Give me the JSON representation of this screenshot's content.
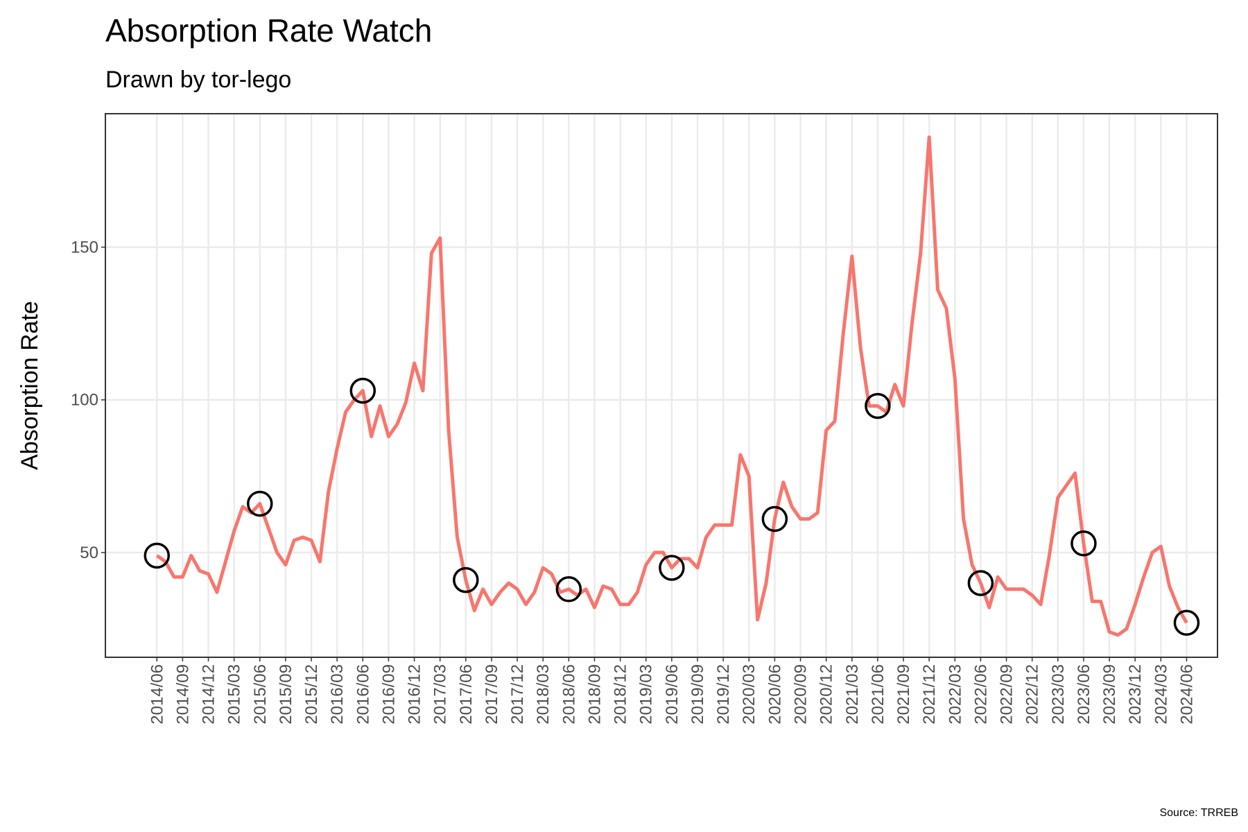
{
  "chart_data": {
    "type": "line",
    "title": "Absorption Rate Watch",
    "subtitle": "Drawn by tor-lego",
    "y_label": "Absorption Rate",
    "caption": "Source: TRREB",
    "x": [
      "2014/06",
      "2014/07",
      "2014/08",
      "2014/09",
      "2014/10",
      "2014/11",
      "2014/12",
      "2015/01",
      "2015/02",
      "2015/03",
      "2015/04",
      "2015/05",
      "2015/06",
      "2015/07",
      "2015/08",
      "2015/09",
      "2015/10",
      "2015/11",
      "2015/12",
      "2016/01",
      "2016/02",
      "2016/03",
      "2016/04",
      "2016/05",
      "2016/06",
      "2016/07",
      "2016/08",
      "2016/09",
      "2016/10",
      "2016/11",
      "2016/12",
      "2017/01",
      "2017/02",
      "2017/03",
      "2017/04",
      "2017/05",
      "2017/06",
      "2017/07",
      "2017/08",
      "2017/09",
      "2017/10",
      "2017/11",
      "2017/12",
      "2018/01",
      "2018/02",
      "2018/03",
      "2018/04",
      "2018/05",
      "2018/06",
      "2018/07",
      "2018/08",
      "2018/09",
      "2018/10",
      "2018/11",
      "2018/12",
      "2019/01",
      "2019/02",
      "2019/03",
      "2019/04",
      "2019/05",
      "2019/06",
      "2019/07",
      "2019/08",
      "2019/09",
      "2019/10",
      "2019/11",
      "2019/12",
      "2020/01",
      "2020/02",
      "2020/03",
      "2020/04",
      "2020/05",
      "2020/06",
      "2020/07",
      "2020/08",
      "2020/09",
      "2020/10",
      "2020/11",
      "2020/12",
      "2021/01",
      "2021/02",
      "2021/03",
      "2021/04",
      "2021/05",
      "2021/06",
      "2021/07",
      "2021/08",
      "2021/09",
      "2021/10",
      "2021/11",
      "2021/12",
      "2022/01",
      "2022/02",
      "2022/03",
      "2022/04",
      "2022/05",
      "2022/06",
      "2022/07",
      "2022/08",
      "2022/09",
      "2022/10",
      "2022/11",
      "2022/12",
      "2023/01",
      "2023/02",
      "2023/03",
      "2023/04",
      "2023/05",
      "2023/06",
      "2023/07",
      "2023/08",
      "2023/09",
      "2023/10",
      "2023/11",
      "2023/12",
      "2024/01",
      "2024/02",
      "2024/03",
      "2024/04",
      "2024/05",
      "2024/06"
    ],
    "series": [
      {
        "name": "Absorption Rate",
        "color": "#F8766D",
        "values": [
          49,
          47,
          42,
          42,
          49,
          44,
          43,
          37,
          47,
          57,
          65,
          63,
          66,
          58,
          50,
          46,
          54,
          55,
          54,
          47,
          70,
          84,
          96,
          100,
          103,
          88,
          98,
          88,
          92,
          99,
          112,
          103,
          148,
          153,
          90,
          55,
          41,
          31,
          38,
          33,
          37,
          40,
          38,
          33,
          37,
          45,
          43,
          37,
          38,
          36,
          38,
          32,
          39,
          38,
          33,
          33,
          37,
          46,
          50,
          50,
          45,
          48,
          48,
          45,
          55,
          59,
          59,
          59,
          82,
          75,
          28,
          40,
          61,
          73,
          65,
          61,
          61,
          63,
          90,
          93,
          122,
          147,
          117,
          98,
          98,
          96,
          105,
          98,
          125,
          148,
          186,
          136,
          130,
          107,
          61,
          46,
          40,
          32,
          42,
          38,
          38,
          38,
          36,
          33,
          49,
          68,
          72,
          76,
          53,
          34,
          34,
          24,
          23,
          25,
          33,
          42,
          50,
          52,
          39,
          32,
          27
        ]
      }
    ],
    "highlight_x": [
      "2014/06",
      "2015/06",
      "2016/06",
      "2017/06",
      "2018/06",
      "2019/06",
      "2020/06",
      "2021/06",
      "2022/06",
      "2023/06",
      "2024/06"
    ],
    "highlight_color": "#000000",
    "xticks": [
      "2014/06",
      "2014/09",
      "2014/12",
      "2015/03",
      "2015/06",
      "2015/09",
      "2015/12",
      "2016/03",
      "2016/06",
      "2016/09",
      "2016/12",
      "2017/03",
      "2017/06",
      "2017/09",
      "2017/12",
      "2018/03",
      "2018/06",
      "2018/09",
      "2018/12",
      "2019/03",
      "2019/06",
      "2019/09",
      "2019/12",
      "2020/03",
      "2020/06",
      "2020/09",
      "2020/12",
      "2021/03",
      "2021/06",
      "2021/09",
      "2021/12",
      "2022/03",
      "2022/06",
      "2022/09",
      "2022/12",
      "2023/03",
      "2023/06",
      "2023/09",
      "2023/12",
      "2024/03",
      "2024/06"
    ],
    "ylim": [
      15.7,
      193.7
    ],
    "yticks": [
      50,
      100,
      150
    ],
    "grid": true
  }
}
